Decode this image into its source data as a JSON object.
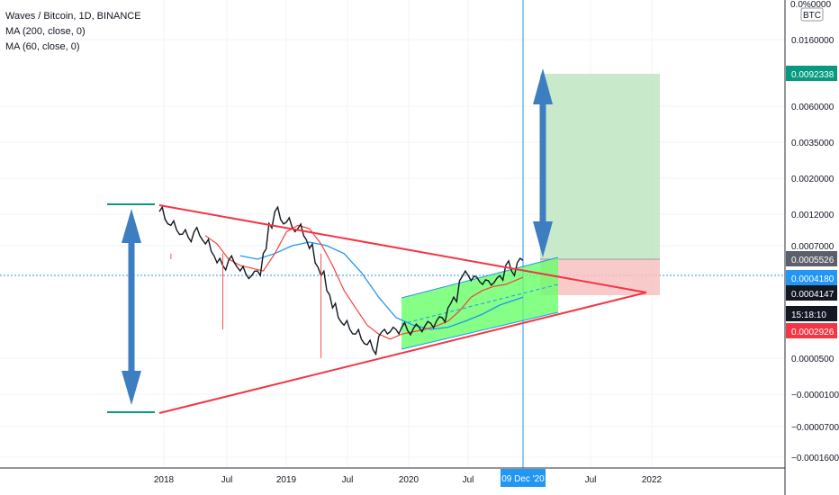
{
  "header": {
    "symbol": "Waves / Bitcoin, 1D, BINANCE",
    "indicators": [
      "MA (200, close, 0)",
      "MA (60, close, 0)"
    ]
  },
  "colors": {
    "price_up": "#26a69a",
    "price_down": "#ef5350",
    "ma200": "#f44336",
    "ma60": "#2196f3",
    "triangle": "#f23645",
    "channel_fill": "#66ff66",
    "arrow": "#3d7ec1",
    "target_zone": "#b7e1b9",
    "stop_zone": "#f7c1c1",
    "crosshair": "#2196f3"
  },
  "chart_data": {
    "type": "line",
    "title": "Waves / Bitcoin, 1D, BINANCE",
    "y_axis_unit": "BTC",
    "y_scale": "log",
    "x_ticks": [
      "2018",
      "Jul",
      "2019",
      "Jul",
      "2020",
      "Jul",
      "09 Dec '20",
      "Jul",
      "2022"
    ],
    "y_ticks": [
      "0.0160000",
      "0.0060000",
      "0.0035000",
      "0.0020000",
      "0.0012000",
      "0.0007000",
      "0.0000500",
      "−0.0000100",
      "−0.0000700",
      "−0.0001600"
    ],
    "price_tags": [
      {
        "label": "0.0092338",
        "color": "#089981"
      },
      {
        "label": "0.0005526",
        "color": "#5d606b"
      },
      {
        "label": "0.0004180",
        "color": "#2196f3"
      },
      {
        "label": "0.0004147",
        "color": "#131722"
      },
      {
        "label": "15:18:10",
        "color": "#131722"
      },
      {
        "label": "0.0002926",
        "color": "#f23645"
      }
    ],
    "axis_top_label": "0.0%0000",
    "series": [
      {
        "name": "MA (200, close, 0)",
        "role": "ma200"
      },
      {
        "name": "MA (60, close, 0)",
        "role": "ma60"
      }
    ],
    "price_path": [
      [
        0.0,
        0.0011
      ],
      [
        0.01,
        0.00095
      ],
      [
        0.02,
        0.00085
      ],
      [
        0.03,
        0.00078
      ],
      [
        0.04,
        0.00072
      ],
      [
        0.05,
        0.00068
      ],
      [
        0.06,
        0.00075
      ],
      [
        0.07,
        0.0007
      ],
      [
        0.08,
        0.0006
      ],
      [
        0.09,
        0.00052
      ],
      [
        0.1,
        0.00042
      ],
      [
        0.11,
        0.0004
      ],
      [
        0.12,
        0.00044
      ],
      [
        0.13,
        0.00042
      ],
      [
        0.14,
        0.00036
      ],
      [
        0.15,
        0.00034
      ],
      [
        0.16,
        0.00033
      ],
      [
        0.17,
        0.00036
      ],
      [
        0.18,
        0.0005
      ],
      [
        0.19,
        0.00088
      ],
      [
        0.2,
        0.0011
      ],
      [
        0.21,
        0.00095
      ],
      [
        0.22,
        0.0009
      ],
      [
        0.23,
        0.00082
      ],
      [
        0.24,
        0.0008
      ],
      [
        0.25,
        0.0007
      ],
      [
        0.26,
        0.00055
      ],
      [
        0.27,
        0.00042
      ],
      [
        0.28,
        0.00033
      ],
      [
        0.29,
        0.00025
      ],
      [
        0.3,
        0.00018
      ],
      [
        0.31,
        0.00015
      ],
      [
        0.32,
        0.00013
      ],
      [
        0.33,
        0.00012
      ],
      [
        0.34,
        0.00011
      ],
      [
        0.35,
        0.0001
      ],
      [
        0.36,
        9e-05
      ],
      [
        0.37,
        8.2e-05
      ],
      [
        0.38,
        0.000105
      ],
      [
        0.39,
        0.00012
      ],
      [
        0.4,
        0.000115
      ],
      [
        0.41,
        0.00012
      ],
      [
        0.42,
        0.000125
      ],
      [
        0.43,
        0.000118
      ],
      [
        0.44,
        0.000122
      ],
      [
        0.45,
        0.000125
      ],
      [
        0.46,
        0.000128
      ],
      [
        0.47,
        0.000135
      ],
      [
        0.48,
        0.00014
      ],
      [
        0.49,
        0.00015
      ],
      [
        0.5,
        0.00018
      ],
      [
        0.51,
        0.00022
      ],
      [
        0.52,
        0.0003
      ],
      [
        0.53,
        0.00036
      ],
      [
        0.54,
        0.0003
      ],
      [
        0.55,
        0.00032
      ],
      [
        0.56,
        0.00028
      ],
      [
        0.57,
        0.0003
      ],
      [
        0.58,
        0.00029
      ],
      [
        0.59,
        0.00033
      ],
      [
        0.6,
        0.0004
      ],
      [
        0.61,
        0.00036
      ],
      [
        0.62,
        0.00042
      ],
      [
        0.63,
        0.00044
      ]
    ],
    "ma60_path": [
      [
        0.08,
        0.0007
      ],
      [
        0.1,
        0.0006
      ],
      [
        0.12,
        0.00045
      ],
      [
        0.14,
        0.0004
      ],
      [
        0.16,
        0.00038
      ],
      [
        0.18,
        0.00036
      ],
      [
        0.2,
        0.0005
      ],
      [
        0.22,
        0.00075
      ],
      [
        0.24,
        0.00085
      ],
      [
        0.26,
        0.0008
      ],
      [
        0.28,
        0.0006
      ],
      [
        0.3,
        0.0004
      ],
      [
        0.32,
        0.00025
      ],
      [
        0.34,
        0.00018
      ],
      [
        0.36,
        0.00013
      ],
      [
        0.38,
        0.00011
      ],
      [
        0.4,
        0.0001
      ],
      [
        0.42,
        0.00011
      ],
      [
        0.44,
        0.000115
      ],
      [
        0.46,
        0.00012
      ],
      [
        0.48,
        0.000128
      ],
      [
        0.5,
        0.00014
      ],
      [
        0.52,
        0.00017
      ],
      [
        0.54,
        0.00022
      ],
      [
        0.56,
        0.00025
      ],
      [
        0.58,
        0.00027
      ],
      [
        0.6,
        0.00028
      ],
      [
        0.63,
        0.00032
      ]
    ],
    "ma200_path": [
      [
        0.14,
        0.00048
      ],
      [
        0.17,
        0.00045
      ],
      [
        0.2,
        0.0005
      ],
      [
        0.23,
        0.00058
      ],
      [
        0.26,
        0.00062
      ],
      [
        0.29,
        0.00058
      ],
      [
        0.32,
        0.0005
      ],
      [
        0.35,
        0.00035
      ],
      [
        0.38,
        0.00022
      ],
      [
        0.41,
        0.00015
      ],
      [
        0.44,
        0.00013
      ],
      [
        0.47,
        0.00012
      ],
      [
        0.5,
        0.000125
      ],
      [
        0.53,
        0.00014
      ],
      [
        0.56,
        0.00016
      ],
      [
        0.59,
        0.00019
      ],
      [
        0.63,
        0.00022
      ]
    ]
  }
}
